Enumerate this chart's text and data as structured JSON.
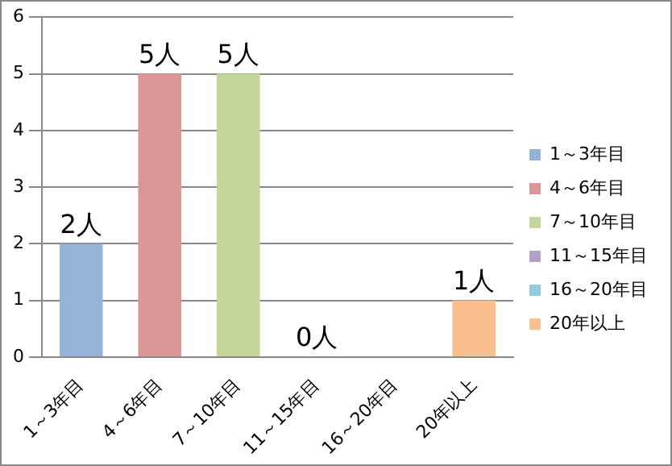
{
  "chart_data": {
    "type": "bar",
    "categories": [
      "1～3年目",
      "4～6年目",
      "7～10年目",
      "11～15年目",
      "16～20年目",
      "20年以上"
    ],
    "series": [
      {
        "name": "1～3年目",
        "color": "#95b3d7",
        "values": [
          2,
          null,
          null,
          null,
          null,
          null
        ],
        "value_labels": [
          "2人",
          null,
          null,
          null,
          null,
          null
        ]
      },
      {
        "name": "4～6年目",
        "color": "#da9694",
        "values": [
          null,
          5,
          null,
          null,
          null,
          null
        ],
        "value_labels": [
          null,
          "5人",
          null,
          null,
          null,
          null
        ]
      },
      {
        "name": "7～10年目",
        "color": "#c4d79b",
        "values": [
          null,
          null,
          5,
          null,
          null,
          null
        ],
        "value_labels": [
          null,
          null,
          "5人",
          null,
          null,
          null
        ]
      },
      {
        "name": "11～15年目",
        "color": "#b1a0c7",
        "values": [
          null,
          null,
          null,
          0,
          null,
          null
        ],
        "value_labels": [
          null,
          null,
          null,
          "0人",
          null,
          null
        ]
      },
      {
        "name": "16～20年目",
        "color": "#92cddc",
        "values": [
          null,
          null,
          null,
          null,
          null,
          null
        ]
      },
      {
        "name": "20年以上",
        "color": "#fabf8f",
        "values": [
          null,
          null,
          null,
          null,
          null,
          1
        ],
        "value_labels": [
          null,
          null,
          null,
          null,
          null,
          "1人"
        ]
      }
    ],
    "ylim": [
      0,
      6
    ],
    "yticks": [
      0,
      1,
      2,
      3,
      4,
      5,
      6
    ],
    "grid": "y",
    "legend": "right"
  }
}
